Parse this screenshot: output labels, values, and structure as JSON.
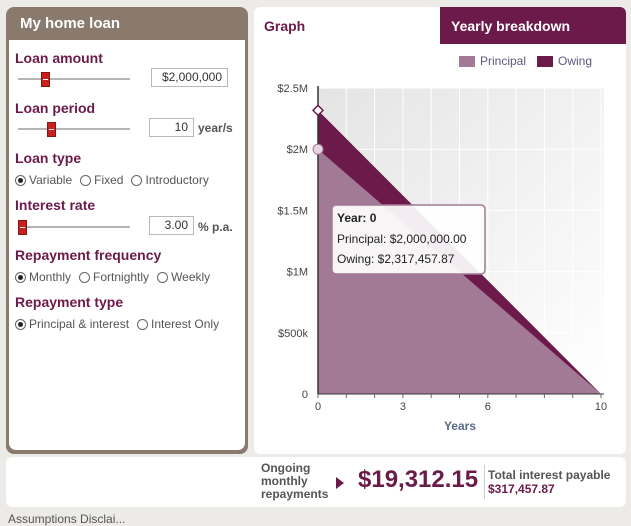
{
  "left": {
    "title": "My home loan",
    "loan_amount": {
      "label": "Loan amount",
      "value": "$2,000,000"
    },
    "loan_period": {
      "label": "Loan period",
      "value": "10",
      "unit": "year/s"
    },
    "loan_type": {
      "label": "Loan type",
      "options": [
        "Variable",
        "Fixed",
        "Introductory"
      ],
      "selected": "Variable"
    },
    "interest_rate": {
      "label": "Interest rate",
      "value": "3.00",
      "unit": "% p.a."
    },
    "repayment_frequency": {
      "label": "Repayment frequency",
      "options": [
        "Monthly",
        "Fortnightly",
        "Weekly"
      ],
      "selected": "Monthly"
    },
    "repayment_type": {
      "label": "Repayment type",
      "options": [
        "Principal & interest",
        "Interest Only"
      ],
      "selected": "Principal & interest"
    }
  },
  "right": {
    "tabs": {
      "graph": "Graph",
      "yearly": "Yearly breakdown"
    },
    "legend": {
      "principal": "Principal",
      "owing": "Owing"
    },
    "colors": {
      "principal": "#a27a95",
      "owing": "#6b1a4a"
    },
    "tooltip": {
      "title": "Year: 0",
      "principal": "Principal: $2,000,000.00",
      "owing": "Owing: $2,317,457.87"
    }
  },
  "chart_data": {
    "type": "area",
    "xlabel": "Years",
    "ylabel": "",
    "x": [
      0,
      10
    ],
    "xticks": [
      0,
      3,
      6,
      10
    ],
    "ytick_labels": [
      "0",
      "$500k",
      "$1M",
      "$1.5M",
      "$2M",
      "$2.5M"
    ],
    "yticks": [
      0,
      500000,
      1000000,
      1500000,
      2000000,
      2500000
    ],
    "ylim": [
      0,
      2500000
    ],
    "xlim": [
      0,
      10
    ],
    "series": [
      {
        "name": "Principal",
        "values": [
          2000000,
          0
        ]
      },
      {
        "name": "Owing",
        "values": [
          2317457.87,
          0
        ]
      }
    ]
  },
  "bottom": {
    "ongoing_line1": "Ongoing",
    "ongoing_line2": "monthly",
    "ongoing_line3": "repayments",
    "amount": "$19,312.15",
    "interest_label": "Total interest payable",
    "interest_value": "$317,457.87"
  },
  "cutoff_text": "Assumptions   Disclai..."
}
